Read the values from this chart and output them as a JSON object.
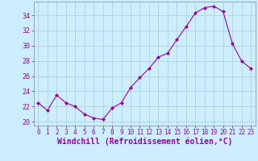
{
  "x": [
    0,
    1,
    2,
    3,
    4,
    5,
    6,
    7,
    8,
    9,
    10,
    11,
    12,
    13,
    14,
    15,
    16,
    17,
    18,
    19,
    20,
    21,
    22,
    23
  ],
  "y": [
    22.5,
    21.5,
    23.5,
    22.5,
    22.0,
    21.0,
    20.5,
    20.3,
    21.8,
    22.5,
    24.5,
    25.8,
    27.0,
    28.5,
    29.0,
    30.8,
    32.5,
    34.3,
    35.0,
    35.2,
    34.5,
    30.3,
    28.0,
    27.0
  ],
  "line_color": "#990099",
  "marker": "D",
  "marker_size": 2.0,
  "bg_color": "#cceeff",
  "grid_color": "#aacccc",
  "xlabel": "Windchill (Refroidissement éolien,°C)",
  "ylabel": "",
  "xlim": [
    -0.5,
    23.5
  ],
  "ylim": [
    19.5,
    35.8
  ],
  "yticks": [
    20,
    22,
    24,
    26,
    28,
    30,
    32,
    34
  ],
  "xticks": [
    0,
    1,
    2,
    3,
    4,
    5,
    6,
    7,
    8,
    9,
    10,
    11,
    12,
    13,
    14,
    15,
    16,
    17,
    18,
    19,
    20,
    21,
    22,
    23
  ],
  "tick_color": "#990099",
  "tick_fontsize": 5.5,
  "xlabel_fontsize": 7.0,
  "label_color": "#990099",
  "spine_color": "#888888"
}
